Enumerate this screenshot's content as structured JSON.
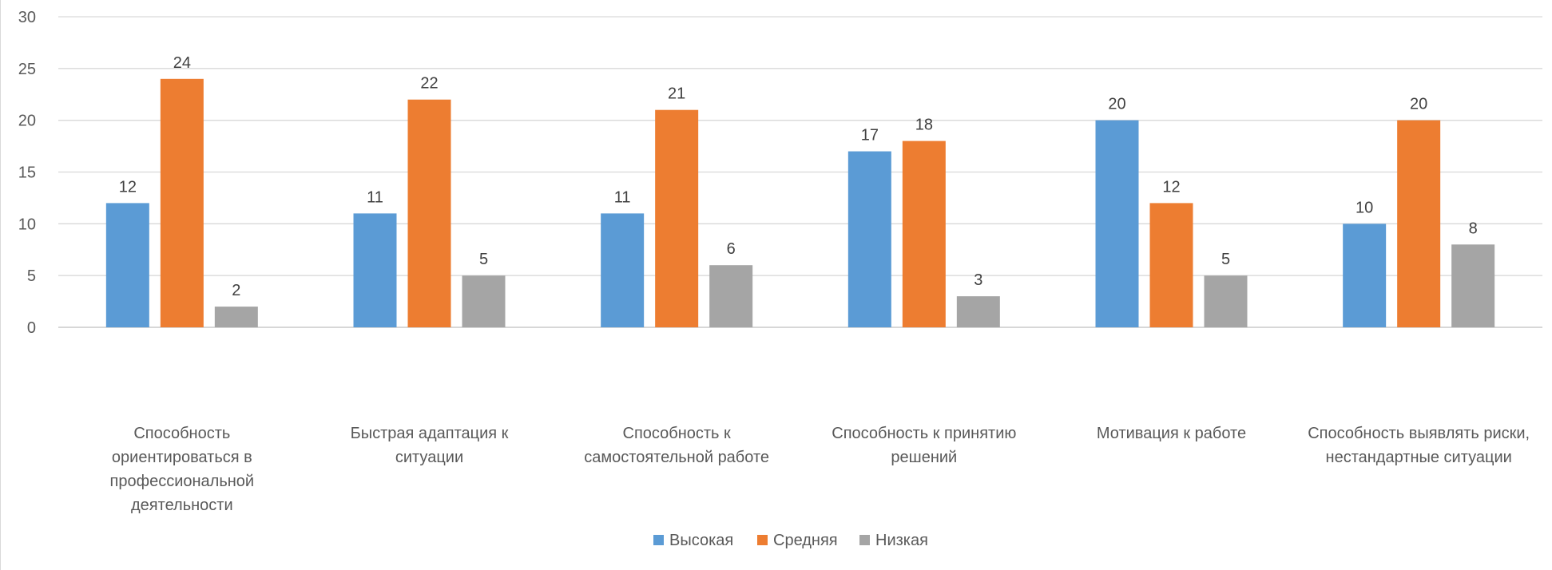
{
  "chart_data": {
    "type": "bar",
    "title": "",
    "xlabel": "",
    "ylabel": "",
    "ylim": [
      0,
      30
    ],
    "yticks": [
      0,
      5,
      10,
      15,
      20,
      25,
      30
    ],
    "grid": true,
    "legend_position": "bottom",
    "categories": [
      "Способность ориентироваться в профессиональной деятельности",
      "Быстрая адаптация к ситуации",
      "Способность к самостоятельной работе",
      "Способность к принятию решений",
      "Мотивация к работе",
      "Способность выявлять риски, нестандартные ситуации"
    ],
    "category_label_lines": [
      [
        "Способность",
        "ориентироваться в",
        "профессиональной",
        "деятельности"
      ],
      [
        "Быстрая адаптация к",
        "ситуации"
      ],
      [
        "Способность к",
        "самостоятельной работе"
      ],
      [
        "Способность к принятию",
        "решений"
      ],
      [
        "Мотивация к работе"
      ],
      [
        "Способность выявлять риски,",
        "нестандартные ситуации"
      ]
    ],
    "series": [
      {
        "name": "Высокая",
        "color": "#5b9bd5",
        "values": [
          12,
          11,
          11,
          17,
          20,
          10
        ]
      },
      {
        "name": "Средняя",
        "color": "#ed7d31",
        "values": [
          24,
          22,
          21,
          18,
          12,
          20
        ]
      },
      {
        "name": "Низкая",
        "color": "#a5a5a5",
        "values": [
          2,
          5,
          6,
          3,
          5,
          8
        ]
      }
    ]
  }
}
